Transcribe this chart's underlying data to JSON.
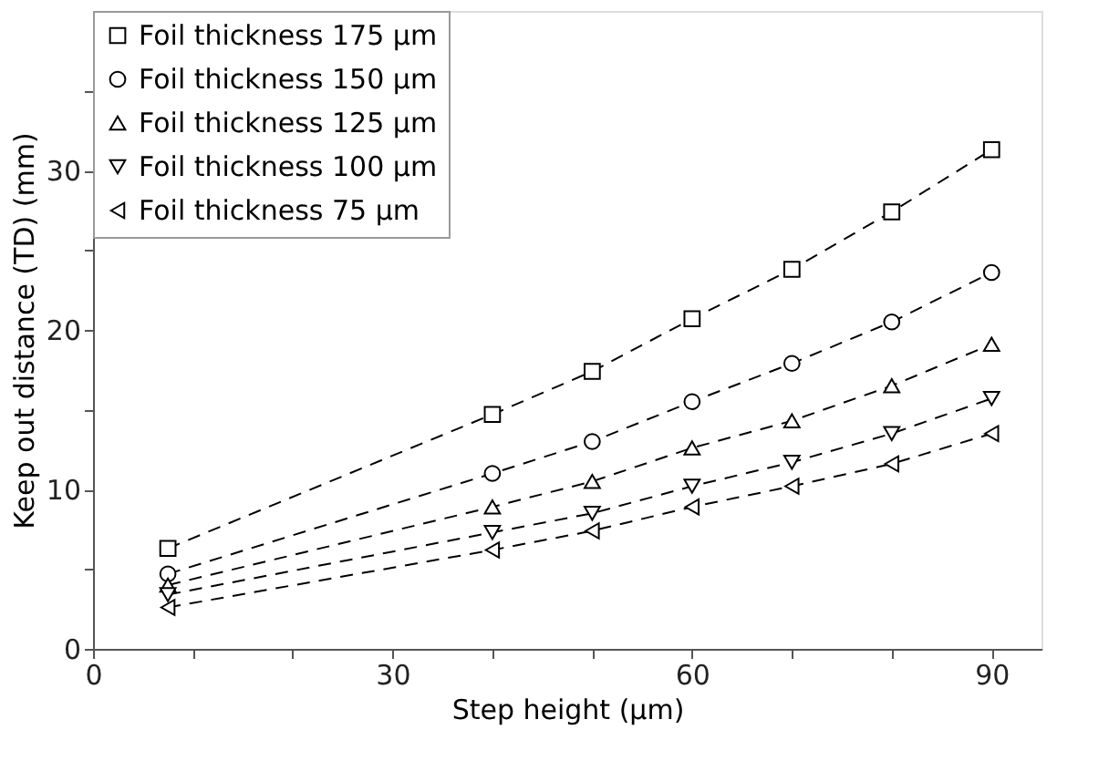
{
  "chart_data": {
    "type": "line",
    "xlabel": "Step height (µm)",
    "ylabel": "Keep out distance (TD) (mm)",
    "x": [
      7.5,
      40,
      50,
      60,
      70,
      80,
      90
    ],
    "series": [
      {
        "name": "Foil thickness 175 µm",
        "color": "#000000",
        "marker": "square",
        "values": [
          6.3,
          14.7,
          17.4,
          20.7,
          23.8,
          27.4,
          31.3
        ]
      },
      {
        "name": "Foil thickness 150 µm",
        "color": "#000000",
        "marker": "circle",
        "values": [
          4.7,
          11.0,
          13.0,
          15.5,
          17.9,
          20.5,
          23.6
        ]
      },
      {
        "name": "Foil thickness 125 µm",
        "color": "#000000",
        "marker": "triangle-up",
        "values": [
          4.0,
          8.9,
          10.5,
          12.6,
          14.3,
          16.5,
          19.1
        ]
      },
      {
        "name": "Foil thickness 100 µm",
        "color": "#000000",
        "marker": "triangle-down",
        "values": [
          3.4,
          7.3,
          8.5,
          10.2,
          11.7,
          13.5,
          15.7
        ]
      },
      {
        "name": "Foil thickness   75 µm",
        "color": "#000000",
        "marker": "triangle-left",
        "values": [
          2.6,
          6.2,
          7.4,
          8.9,
          10.2,
          11.6,
          13.5
        ]
      }
    ],
    "xlim": [
      0,
      95
    ],
    "xticks": [
      0,
      {
        "value": 10,
        "label": null
      },
      {
        "value": 20,
        "label": null
      },
      30,
      {
        "value": 40,
        "label": null
      },
      {
        "value": 50,
        "label": null
      },
      60,
      {
        "value": 70,
        "label": null
      },
      {
        "value": 80,
        "label": null
      },
      90
    ],
    "ylim": [
      0,
      40
    ],
    "yticks": [
      0,
      {
        "value": 5,
        "label": null
      },
      10,
      {
        "value": 15,
        "label": null
      },
      20,
      {
        "value": 25,
        "label": null
      },
      30,
      {
        "value": 35,
        "label": null
      }
    ],
    "line_style": "dashed",
    "legend": "top left",
    "grid": false
  }
}
